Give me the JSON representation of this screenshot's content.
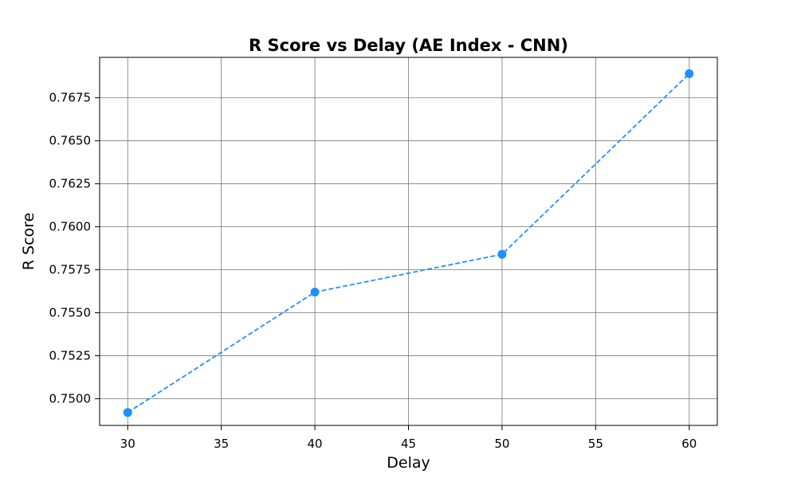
{
  "chart_data": {
    "type": "line",
    "title": "R Score vs Delay (AE Index - CNN)",
    "xlabel": "Delay",
    "ylabel": "R Score",
    "x": [
      30,
      40,
      50,
      60
    ],
    "series": [
      {
        "values": [
          0.7492,
          0.7562,
          0.7584,
          0.7689
        ],
        "color": "#1E90FF",
        "line_style": "dashed",
        "marker": "circle"
      }
    ],
    "xlim": [
      28.5,
      61.5
    ],
    "ylim": [
      0.74845,
      0.76985
    ],
    "xticks": [
      30,
      35,
      40,
      45,
      50,
      55,
      60
    ],
    "yticks": [
      0.75,
      0.7525,
      0.755,
      0.7575,
      0.76,
      0.7625,
      0.765,
      0.7675
    ],
    "ytick_labels": [
      "0.7500",
      "0.7525",
      "0.7550",
      "0.7575",
      "0.7600",
      "0.7625",
      "0.7650",
      "0.7675"
    ],
    "grid": true,
    "grid_color": "#777777"
  }
}
